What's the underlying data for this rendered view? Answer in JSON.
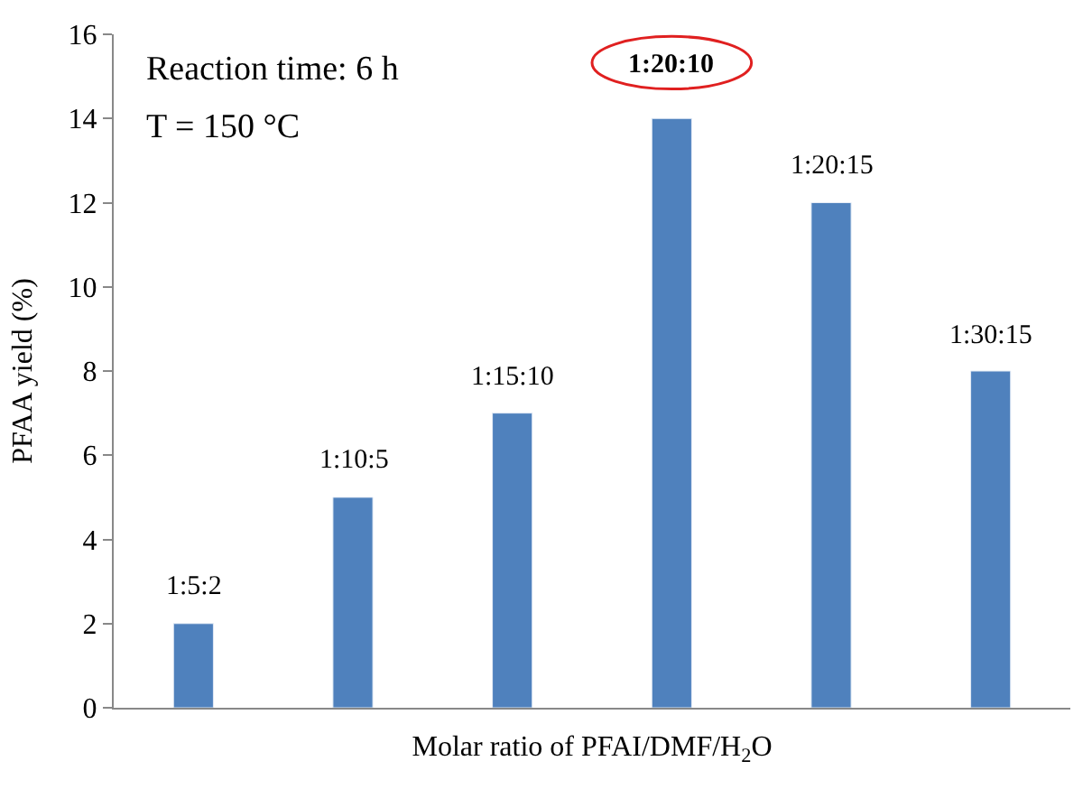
{
  "chart_data": {
    "type": "bar",
    "categories": [
      "1:5:2",
      "1:10:5",
      "1:15:10",
      "1:20:10",
      "1:20:15",
      "1:30:15"
    ],
    "values": [
      2,
      5,
      7,
      14,
      12,
      8
    ],
    "color": "#4f81bd",
    "xlabel": "Molar ratio of PFAI/DMF/H$_{2}$O",
    "ylabel": "PFAA yield (%)",
    "ylim": [
      0,
      16
    ],
    "yticks": [
      0,
      2,
      4,
      6,
      8,
      10,
      12,
      14,
      16
    ],
    "legend": false,
    "tick_labels": "y",
    "annotations": [
      "Reaction time: 6 h",
      "T = 150 °C"
    ]
  }
}
